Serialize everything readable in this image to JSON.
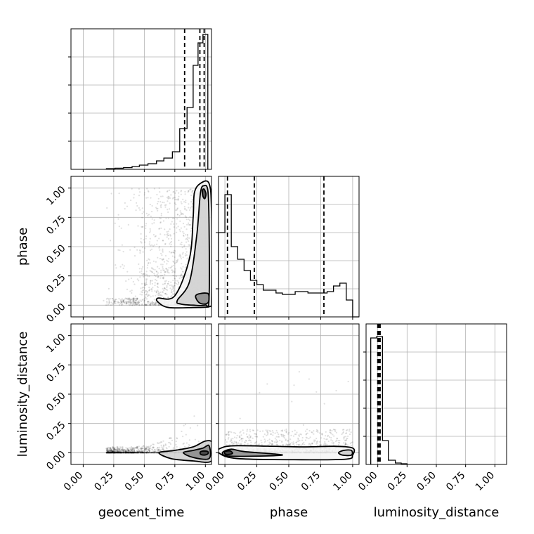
{
  "chart_data": {
    "type": "corner",
    "parameters": [
      "geocent_time",
      "phase",
      "luminosity_distance"
    ],
    "tick_values": [
      0.0,
      0.25,
      0.5,
      0.75,
      1.0
    ],
    "tick_labels": [
      "0.00",
      "0.25",
      "0.50",
      "0.75",
      "1.00"
    ],
    "grid": true,
    "panels": {
      "geocent_time_hist": {
        "xlim": [
          -0.1,
          1.05
        ],
        "bin_edges": [
          0.19,
          0.26,
          0.33,
          0.4,
          0.46,
          0.53,
          0.6,
          0.66,
          0.73,
          0.79,
          0.85,
          0.9,
          0.94,
          0.98,
          1.02
        ],
        "counts": [
          0.005,
          0.008,
          0.012,
          0.02,
          0.03,
          0.04,
          0.06,
          0.08,
          0.125,
          0.29,
          0.44,
          0.74,
          0.9,
          0.96
        ],
        "quantile_lines": [
          0.83,
          0.955,
          0.99
        ]
      },
      "phase_hist": {
        "xlim": [
          -0.05,
          1.05
        ],
        "bin_edges": [
          -0.05,
          0.0,
          0.05,
          0.1,
          0.15,
          0.2,
          0.25,
          0.3,
          0.35,
          0.4,
          0.45,
          0.5,
          0.55,
          0.6,
          0.65,
          0.7,
          0.75,
          0.8,
          0.85,
          0.9,
          0.95,
          1.0,
          1.05
        ],
        "counts": [
          0.6,
          0.87,
          0.5,
          0.41,
          0.33,
          0.26,
          0.23,
          0.19,
          0.19,
          0.17,
          0.16,
          0.16,
          0.18,
          0.18,
          0.17,
          0.17,
          0.17,
          0.18,
          0.22,
          0.24,
          0.12,
          0.0
        ],
        "quantile_lines": [
          0.02,
          0.23,
          0.775
        ]
      },
      "luminosity_distance_hist": {
        "xlim": [
          -0.1,
          1.1
        ],
        "bin_edges": [
          -0.06,
          -0.01,
          0.04,
          0.09,
          0.15,
          0.2,
          0.25
        ],
        "counts": [
          0.9,
          0.91,
          0.17,
          0.03,
          0.01,
          0.005
        ],
        "quantile_lines": [
          0.0,
          0.01,
          0.02
        ]
      },
      "phase_vs_geocent_time": {
        "x_param": "geocent_time",
        "y_param": "phase",
        "xlim": [
          -0.1,
          1.05
        ],
        "ylim": [
          -0.1,
          1.1
        ],
        "contour_levels": [
          [
            [
              0.98,
              0.93
            ],
            [
              0.975,
              0.98
            ],
            [
              0.99,
              0.99
            ],
            [
              1.005,
              0.95
            ],
            [
              0.995,
              0.91
            ]
          ],
          [
            [
              0.92,
              0.08
            ],
            [
              0.94,
              0.03
            ],
            [
              0.98,
              0.01
            ],
            [
              1.02,
              0.02
            ],
            [
              1.03,
              0.06
            ],
            [
              1.02,
              0.1
            ],
            [
              0.96,
              0.1
            ]
          ],
          [
            [
              0.77,
              0.04
            ],
            [
              0.87,
              0.2
            ],
            [
              0.93,
              0.6
            ],
            [
              0.96,
              0.96
            ],
            [
              0.99,
              1.02
            ],
            [
              1.02,
              0.98
            ],
            [
              1.03,
              0.7
            ],
            [
              1.03,
              0.05
            ],
            [
              1.0,
              0.0
            ],
            [
              0.9,
              0.0
            ],
            [
              0.8,
              0.01
            ]
          ],
          [
            [
              0.62,
              0.02
            ],
            [
              0.61,
              0.06
            ],
            [
              0.75,
              0.08
            ],
            [
              0.87,
              0.4
            ],
            [
              0.9,
              0.75
            ],
            [
              0.91,
              0.96
            ],
            [
              0.96,
              1.04
            ],
            [
              1.03,
              1.04
            ],
            [
              1.05,
              0.8
            ],
            [
              1.05,
              0.05
            ],
            [
              1.04,
              -0.01
            ],
            [
              0.9,
              -0.02
            ],
            [
              0.7,
              -0.02
            ]
          ]
        ]
      },
      "luminosity_distance_vs_geocent_time": {
        "x_param": "geocent_time",
        "y_param": "luminosity_distance",
        "xlim": [
          -0.1,
          1.05
        ],
        "ylim": [
          -0.1,
          1.1
        ],
        "contour_levels": [
          [
            [
              0.96,
              -0.012
            ],
            [
              0.99,
              -0.02
            ],
            [
              1.02,
              -0.01
            ],
            [
              1.02,
              0.01
            ],
            [
              0.99,
              0.015
            ],
            [
              0.96,
              0.008
            ]
          ],
          [
            [
              0.82,
              0.0
            ],
            [
              0.9,
              -0.04
            ],
            [
              1.03,
              -0.05
            ],
            [
              1.03,
              0.06
            ],
            [
              0.98,
              0.04
            ],
            [
              0.9,
              0.02
            ]
          ],
          [
            [
              0.62,
              0.0
            ],
            [
              0.72,
              -0.05
            ],
            [
              0.9,
              -0.07
            ],
            [
              1.05,
              -0.07
            ],
            [
              1.06,
              0.08
            ],
            [
              1.0,
              0.1
            ],
            [
              0.9,
              0.05
            ],
            [
              0.75,
              0.02
            ]
          ]
        ]
      },
      "luminosity_distance_vs_phase": {
        "x_param": "phase",
        "y_param": "luminosity_distance",
        "xlim": [
          -0.05,
          1.05
        ],
        "ylim": [
          -0.1,
          1.1
        ],
        "contour_levels": [
          [
            [
              0.0,
              -0.01
            ],
            [
              0.03,
              -0.015
            ],
            [
              0.06,
              -0.005
            ],
            [
              0.04,
              0.015
            ],
            [
              0.0,
              0.01
            ]
          ],
          [
            [
              -0.02,
              0.0
            ],
            [
              0.05,
              -0.03
            ],
            [
              0.45,
              -0.02
            ],
            [
              0.15,
              0.01
            ],
            [
              0.05,
              0.03
            ]
          ],
          [
            [
              0.89,
              0.0
            ],
            [
              0.92,
              -0.02
            ],
            [
              0.99,
              -0.02
            ],
            [
              0.99,
              0.02
            ],
            [
              0.93,
              0.02
            ]
          ],
          [
            [
              -0.05,
              0.0
            ],
            [
              0.1,
              -0.05
            ],
            [
              0.6,
              -0.06
            ],
            [
              0.95,
              -0.055
            ],
            [
              1.0,
              -0.02
            ],
            [
              1.0,
              0.04
            ],
            [
              0.85,
              0.055
            ],
            [
              0.6,
              0.05
            ],
            [
              0.1,
              0.06
            ],
            [
              -0.03,
              0.04
            ]
          ]
        ]
      }
    }
  }
}
